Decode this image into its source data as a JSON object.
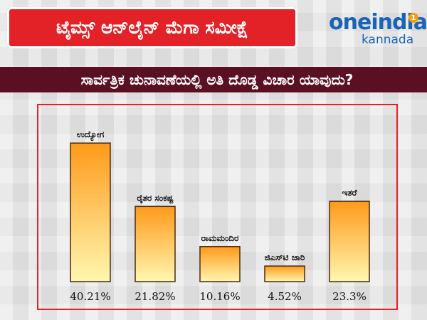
{
  "header": {
    "title": "ಟೈಮ್ಸ್ ಆನ್‌ಲೈನ್ ಮೆಗಾ ಸಮೀಕ್ಷೆ",
    "logo_main": "oneindia",
    "logo_sub": "kannada",
    "logo_badge": "1"
  },
  "question": "ಸಾರ್ವತ್ರಿಕ ಚುನಾವಣೆಯಲ್ಲಿ ಅತಿ ದೊಡ್ಡ ವಿಚಾರ ಯಾವುದು?",
  "chart_data": {
    "type": "bar",
    "categories": [
      "ಉದ್ಯೋಗ",
      "ರೈತರ ಸಂಕಷ್ಟ",
      "ರಾಮಮಂದಿರ",
      "ಜಿಎಸ್‌ಟಿ ಜಾರಿ",
      "ಇತರೆ"
    ],
    "values": [
      40.21,
      21.82,
      10.16,
      4.52,
      23.3
    ],
    "value_labels": [
      "40.21%",
      "21.82%",
      "10.16%",
      "4.52%",
      "23.3%"
    ],
    "ylim": [
      0,
      45
    ],
    "grid": false,
    "colors": {
      "bar_top": "#ff9a1a",
      "bar_bottom": "#fff7b0",
      "bar_border": "#4a2a10"
    }
  },
  "colors": {
    "banner": "#e32227",
    "question_band": "#5a0f23",
    "frame": "#e32227",
    "logo": "#1a64b8"
  }
}
